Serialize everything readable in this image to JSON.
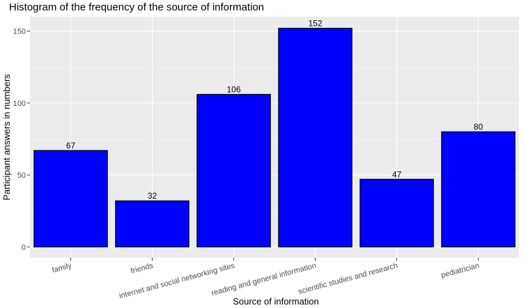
{
  "chart_data": {
    "type": "bar",
    "title": "Histogram of the frequency of the source of information",
    "xlabel": "Source of information",
    "ylabel": "Participant answers in numbers",
    "categories": [
      "family",
      "friends",
      "internet and social networking sites",
      "reading and general information",
      "scientific studies and research",
      "pediatrician"
    ],
    "values": [
      67,
      32,
      106,
      152,
      47,
      80
    ],
    "ylim": [
      0,
      160
    ],
    "yticks": [
      0,
      50,
      100,
      150
    ],
    "grid": true,
    "legend": "none",
    "colors": {
      "bar_fill": "#0000FF",
      "bar_stroke": "#000000",
      "panel_bg": "#EBEBEB",
      "grid_major": "#FFFFFF",
      "grid_minor": "#F5F5F5"
    }
  }
}
